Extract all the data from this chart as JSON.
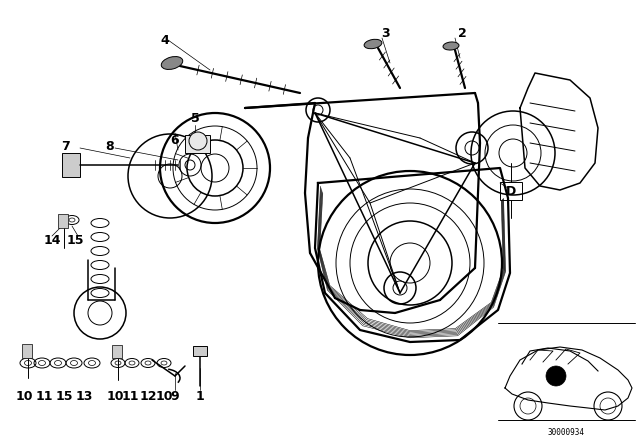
{
  "background_color": "#ffffff",
  "line_color": "#000000",
  "fig_width": 6.4,
  "fig_height": 4.48,
  "dpi": 100,
  "code": "30000934"
}
